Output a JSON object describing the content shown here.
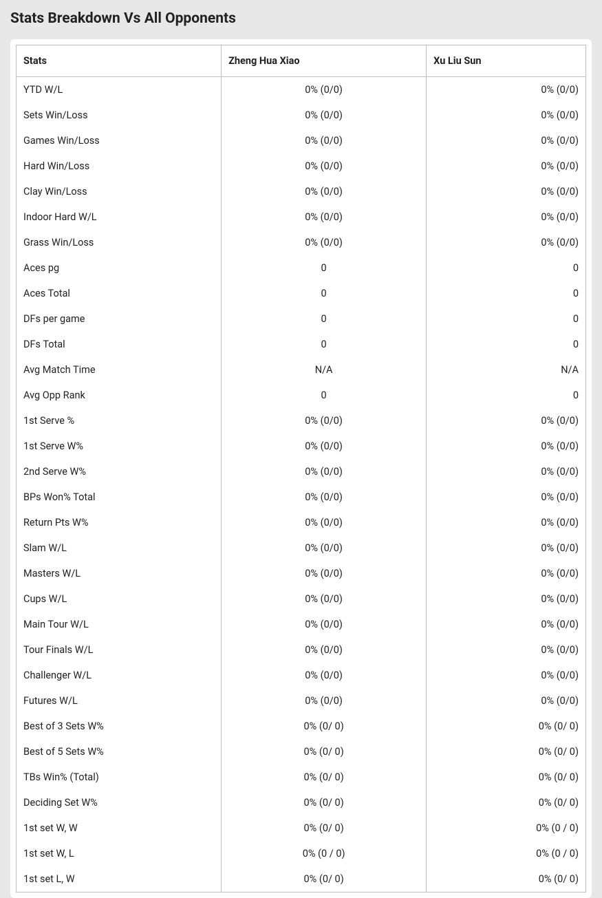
{
  "title": "Stats Breakdown Vs All Opponents",
  "columns": {
    "label": "Stats",
    "player1": "Zheng Hua Xiao",
    "player2": "Xu Liu Sun"
  },
  "rows": [
    {
      "label": "YTD W/L",
      "p1": "0% (0/0)",
      "p2": "0% (0/0)"
    },
    {
      "label": "Sets Win/Loss",
      "p1": "0% (0/0)",
      "p2": "0% (0/0)"
    },
    {
      "label": "Games Win/Loss",
      "p1": "0% (0/0)",
      "p2": "0% (0/0)"
    },
    {
      "label": "Hard Win/Loss",
      "p1": "0% (0/0)",
      "p2": "0% (0/0)"
    },
    {
      "label": "Clay Win/Loss",
      "p1": "0% (0/0)",
      "p2": "0% (0/0)"
    },
    {
      "label": "Indoor Hard W/L",
      "p1": "0% (0/0)",
      "p2": "0% (0/0)"
    },
    {
      "label": "Grass Win/Loss",
      "p1": "0% (0/0)",
      "p2": "0% (0/0)"
    },
    {
      "label": "Aces pg",
      "p1": "0",
      "p2": "0"
    },
    {
      "label": "Aces Total",
      "p1": "0",
      "p2": "0"
    },
    {
      "label": "DFs per game",
      "p1": "0",
      "p2": "0"
    },
    {
      "label": "DFs Total",
      "p1": "0",
      "p2": "0"
    },
    {
      "label": "Avg Match Time",
      "p1": "N/A",
      "p2": "N/A"
    },
    {
      "label": "Avg Opp Rank",
      "p1": "0",
      "p2": "0"
    },
    {
      "label": "1st Serve %",
      "p1": "0% (0/0)",
      "p2": "0% (0/0)"
    },
    {
      "label": "1st Serve W%",
      "p1": "0% (0/0)",
      "p2": "0% (0/0)"
    },
    {
      "label": "2nd Serve W%",
      "p1": "0% (0/0)",
      "p2": "0% (0/0)"
    },
    {
      "label": "BPs Won% Total",
      "p1": "0% (0/0)",
      "p2": "0% (0/0)"
    },
    {
      "label": "Return Pts W%",
      "p1": "0% (0/0)",
      "p2": "0% (0/0)"
    },
    {
      "label": "Slam W/L",
      "p1": "0% (0/0)",
      "p2": "0% (0/0)"
    },
    {
      "label": "Masters W/L",
      "p1": "0% (0/0)",
      "p2": "0% (0/0)"
    },
    {
      "label": "Cups W/L",
      "p1": "0% (0/0)",
      "p2": "0% (0/0)"
    },
    {
      "label": "Main Tour W/L",
      "p1": "0% (0/0)",
      "p2": "0% (0/0)"
    },
    {
      "label": "Tour Finals W/L",
      "p1": "0% (0/0)",
      "p2": "0% (0/0)"
    },
    {
      "label": "Challenger W/L",
      "p1": "0% (0/0)",
      "p2": "0% (0/0)"
    },
    {
      "label": "Futures W/L",
      "p1": "0% (0/0)",
      "p2": "0% (0/0)"
    },
    {
      "label": "Best of 3 Sets W%",
      "p1": "0% (0/ 0)",
      "p2": "0% (0/ 0)"
    },
    {
      "label": "Best of 5 Sets W%",
      "p1": "0% (0/ 0)",
      "p2": "0% (0/ 0)"
    },
    {
      "label": "TBs Win% (Total)",
      "p1": "0% (0/ 0)",
      "p2": "0% (0/ 0)"
    },
    {
      "label": "Deciding Set W%",
      "p1": "0% (0/ 0)",
      "p2": "0% (0/ 0)"
    },
    {
      "label": "1st set W, W",
      "p1": "0% (0/ 0)",
      "p2": "0% (0 / 0)"
    },
    {
      "label": "1st set W, L",
      "p1": "0% (0 / 0)",
      "p2": "0% (0 / 0)"
    },
    {
      "label": "1st set L, W",
      "p1": "0% (0/ 0)",
      "p2": "0% (0/ 0)"
    }
  ]
}
